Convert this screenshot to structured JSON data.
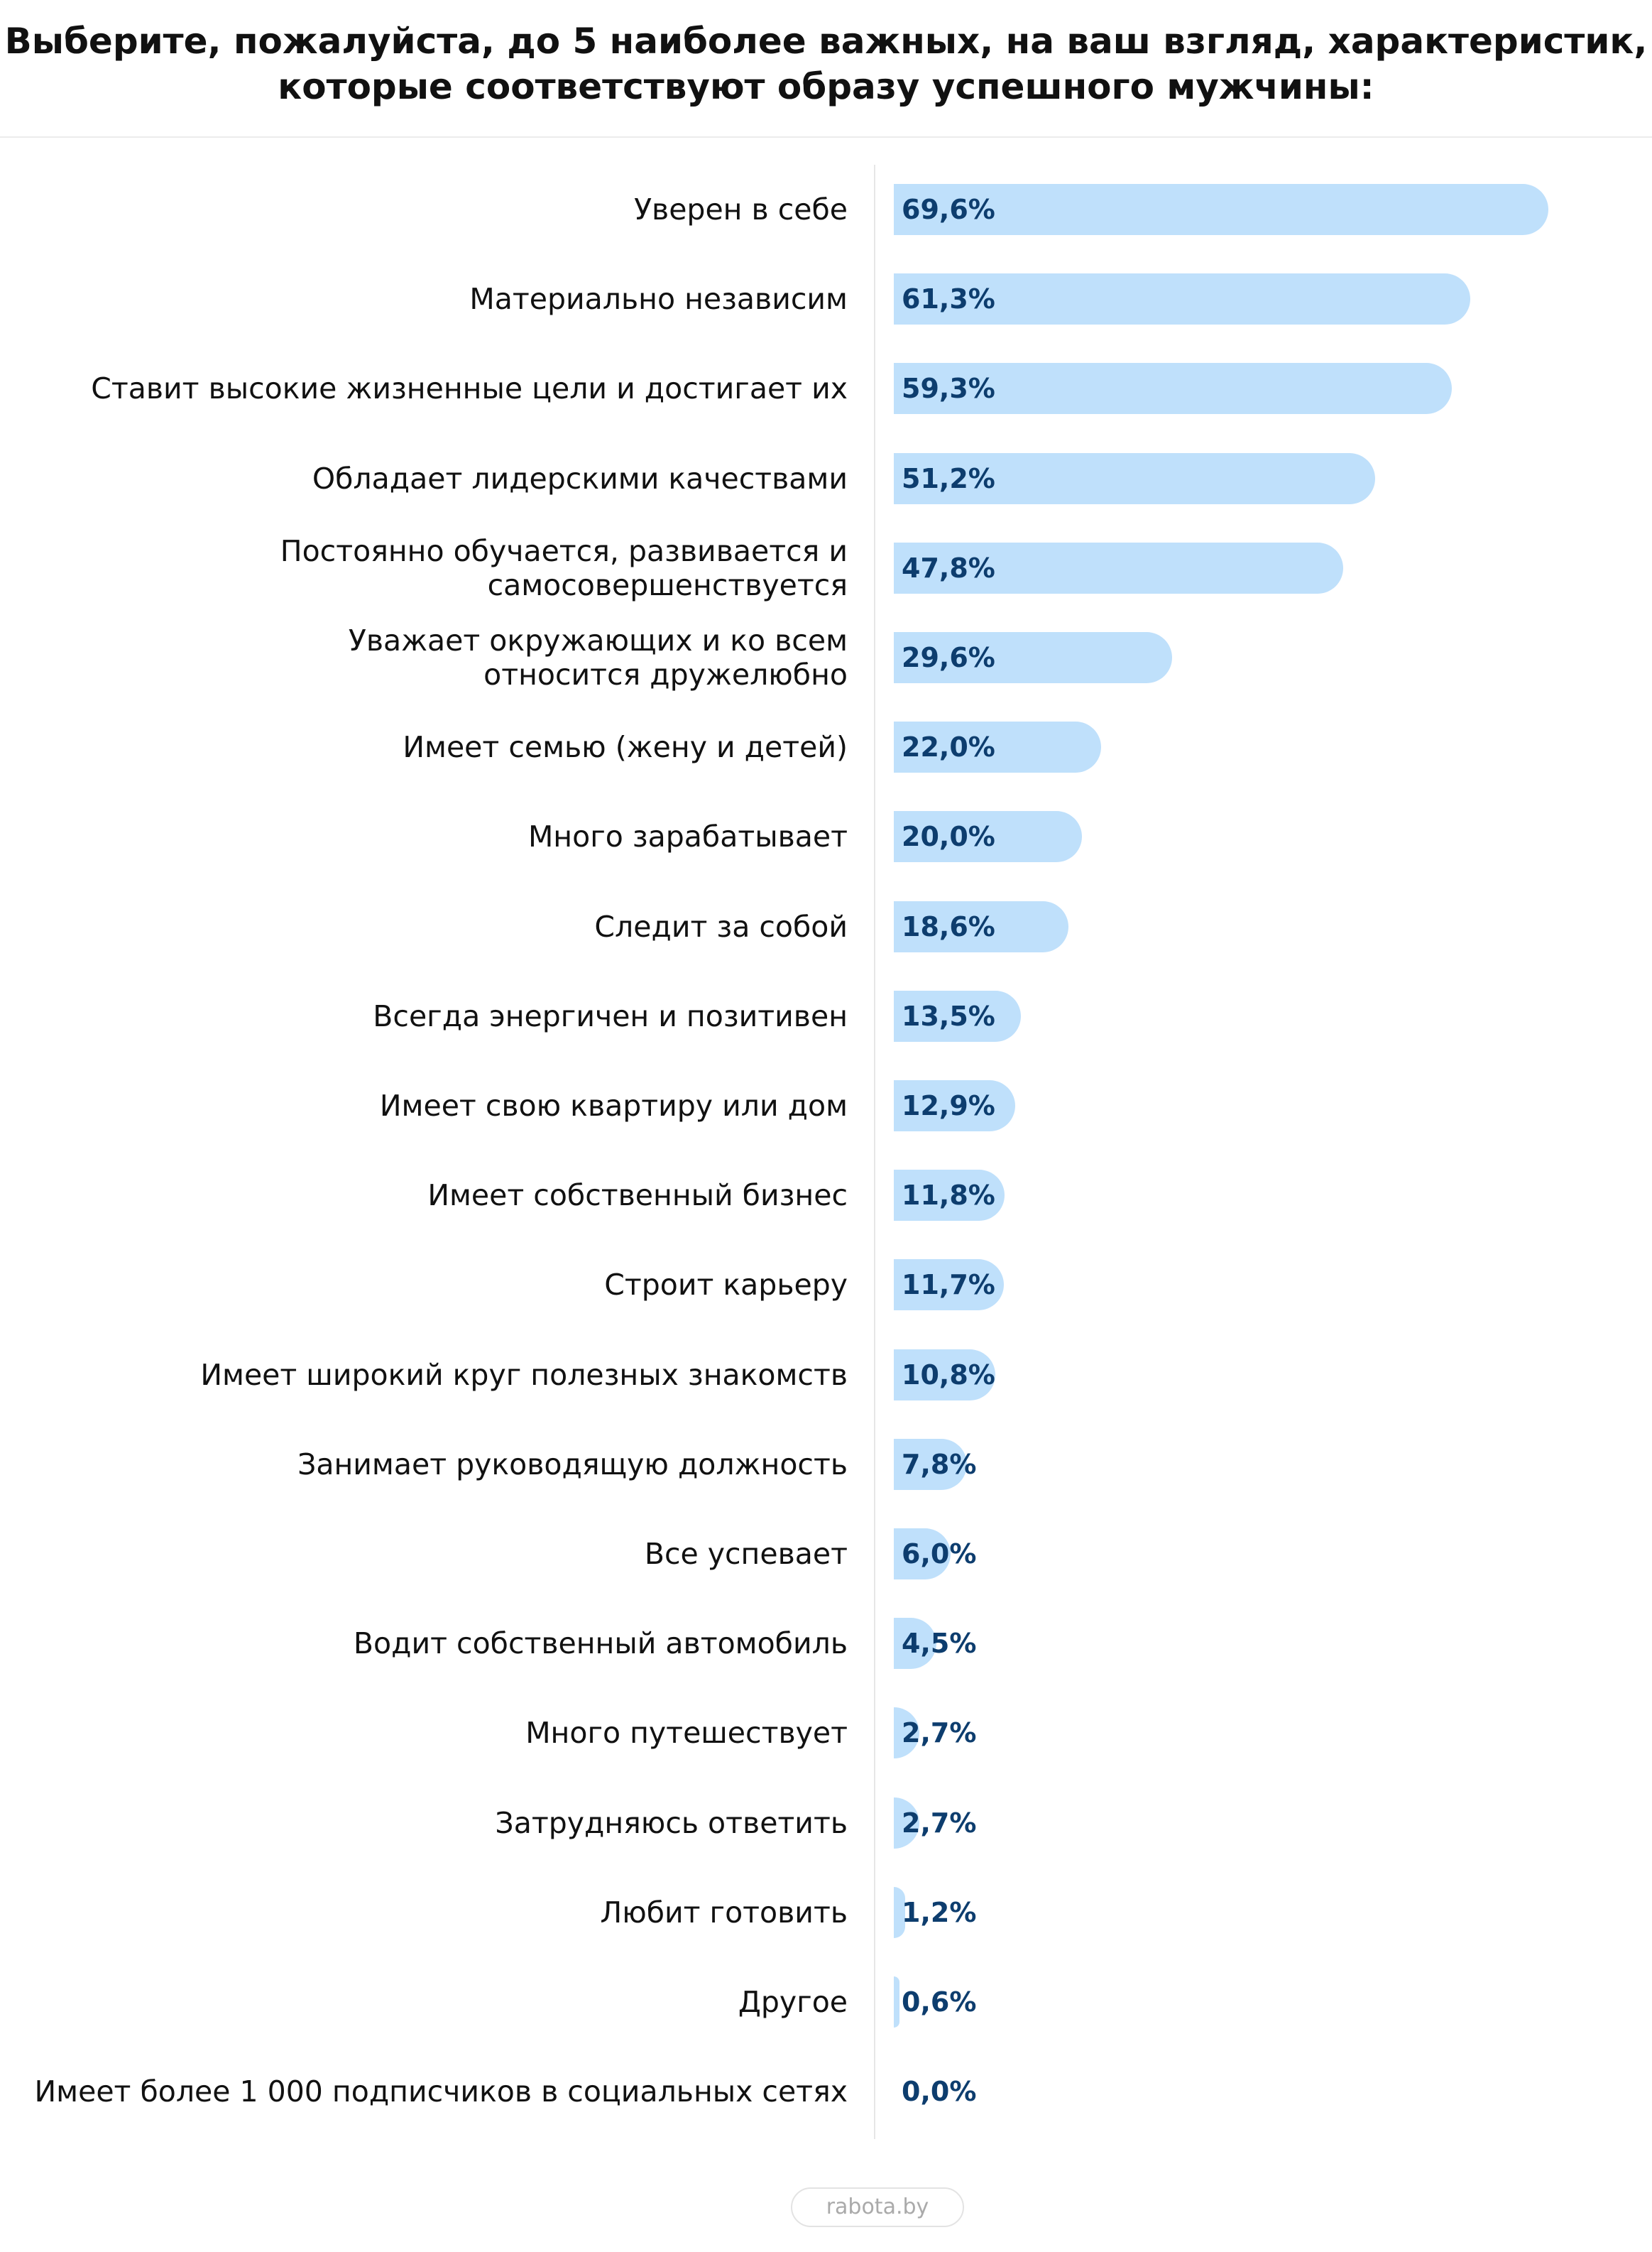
{
  "chart_data": {
    "type": "bar",
    "title": "Выберите, пожалуйста, до 5 наиболее важных, на ваш взгляд, характеристик,\nкоторые соответствуют образу успешного мужчины:",
    "categories": [
      "Уверен в себе",
      "Материально независим",
      "Ставит высокие жизненные цели и достигает их",
      "Обладает лидерскими качествами",
      "Постоянно обучается, развивается и\nсамосовершенствуется",
      "Уважает окружающих и ко всем\nотносится дружелюбно",
      "Имеет семью (жену и детей)",
      "Много зарабатывает",
      "Следит за собой",
      "Всегда энергичен и позитивен",
      "Имеет свою квартиру или дом",
      "Имеет собственный бизнес",
      "Строит карьеру",
      "Имеет широкий круг полезных знакомств",
      "Занимает руководящую должность",
      "Все успевает",
      "Водит собственный автомобиль",
      "Много путешествует",
      "Затрудняюсь ответить",
      "Любит готовить",
      "Другое",
      "Имеет более 1 000 подписчиков в социальных сетях"
    ],
    "values": [
      69.6,
      61.3,
      59.3,
      51.2,
      47.8,
      29.6,
      22.0,
      20.0,
      18.6,
      13.5,
      12.9,
      11.8,
      11.7,
      10.8,
      7.8,
      6.0,
      4.5,
      2.7,
      2.7,
      1.2,
      0.6,
      0.0
    ],
    "value_labels": [
      "69,6%",
      "61,3%",
      "59,3%",
      "51,2%",
      "47,8%",
      "29,6%",
      "22,0%",
      "20,0%",
      "18,6%",
      "13,5%",
      "12,9%",
      "11,8%",
      "11,7%",
      "10,8%",
      "7,8%",
      "6,0%",
      "4,5%",
      "2,7%",
      "2,7%",
      "1,2%",
      "0,6%",
      "0,0%"
    ],
    "color": "#bfe0fb",
    "source": "rabota.by"
  }
}
